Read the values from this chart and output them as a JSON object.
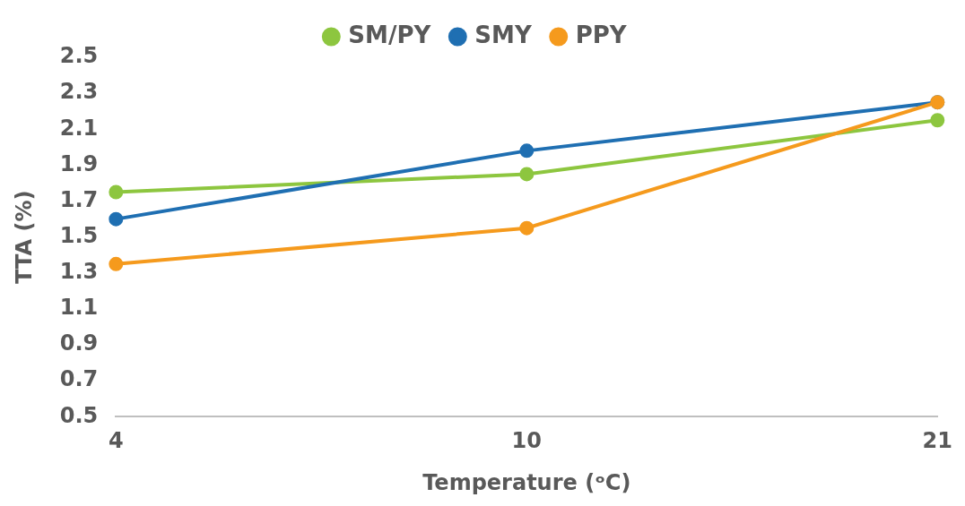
{
  "chart_data": {
    "type": "line",
    "xlabel": "Temperature (ᵒC)",
    "ylabel": "TTA (%)",
    "categories": [
      "4",
      "10",
      "21"
    ],
    "series": [
      {
        "name": "SM/PY",
        "color": "#8dc63f",
        "values": [
          1.75,
          1.85,
          2.15
        ]
      },
      {
        "name": "SMY",
        "color": "#1f6fb2",
        "values": [
          1.6,
          1.98,
          2.25
        ]
      },
      {
        "name": "PPY",
        "color": "#f59a1d",
        "values": [
          1.35,
          1.55,
          2.25
        ]
      }
    ],
    "ylim": [
      0.5,
      2.5
    ],
    "yticks": [
      0.5,
      0.7,
      0.9,
      1.1,
      1.3,
      1.5,
      1.7,
      1.9,
      2.1,
      2.3,
      2.5
    ],
    "grid": false,
    "legend": "top",
    "marker": "circle",
    "line_style": "solid"
  }
}
